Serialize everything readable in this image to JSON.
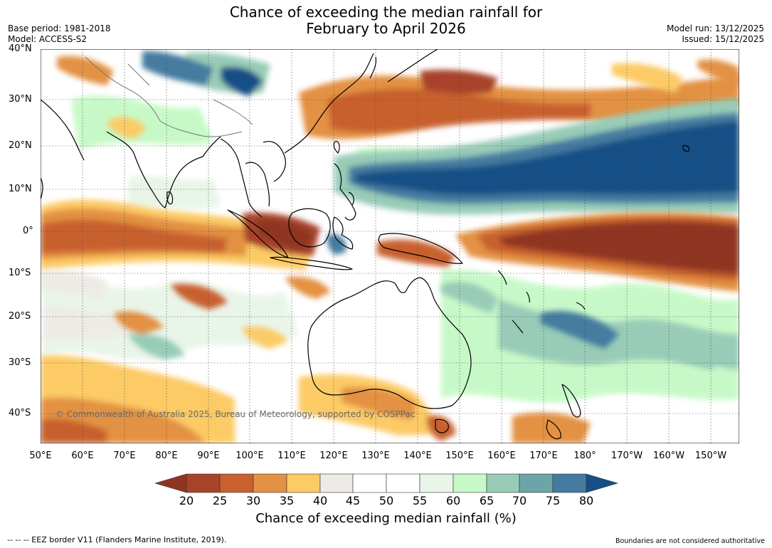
{
  "title": {
    "line1": "Chance of exceeding the median rainfall for",
    "line2": "February to April 2026"
  },
  "meta_left": {
    "base_period": "Base period: 1981-2018",
    "model": "Model: ACCESS-S2"
  },
  "meta_right": {
    "model_run": "Model run: 13/12/2025",
    "issued": "Issued: 15/12/2025"
  },
  "lat_labels": [
    "40°N",
    "30°N",
    "20°N",
    "10°N",
    "0°",
    "10°S",
    "20°S",
    "30°S",
    "40°S"
  ],
  "lon_labels": [
    "50°E",
    "60°E",
    "70°E",
    "80°E",
    "90°E",
    "100°E",
    "110°E",
    "120°E",
    "130°E",
    "140°E",
    "150°E",
    "160°E",
    "170°E",
    "180°",
    "170°W",
    "160°W",
    "150°W"
  ],
  "credit": "© Commonwealth of Australia 2025, Bureau of Meteorology, supported by COSPPac",
  "legend": {
    "title": "Chance of exceeding median rainfall (%)",
    "ticks": [
      "20",
      "25",
      "30",
      "35",
      "40",
      "45",
      "50",
      "55",
      "60",
      "65",
      "70",
      "75",
      "80"
    ],
    "colors": {
      "lt20": "#8f3522",
      "c20_25": "#a8432a",
      "c25_30": "#c8602f",
      "c30_35": "#e39143",
      "c35_40": "#fccb66",
      "c40_45": "#eeebe6",
      "c45_50": "#ffffff",
      "c50_55": "#ffffff",
      "c55_60": "#e9f5e9",
      "c60_65": "#c7f9c8",
      "c65_70": "#98ccb7",
      "c70_75": "#6ba5a7",
      "c75_80": "#457ba0",
      "gt80": "#154f85"
    }
  },
  "footer_left": "--  --  -- EEZ border V11 (Flanders Marine Institute, 2019).",
  "footer_right": "Boundaries are not considered authoritative"
}
